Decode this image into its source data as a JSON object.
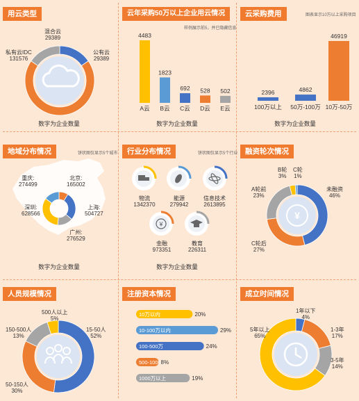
{
  "colors": {
    "blue": "#4472c4",
    "orange": "#ed7d31",
    "gray": "#a5a5a5",
    "yellow": "#ffc000",
    "lightblue": "#5b9bd5",
    "title_bg": "#f07a2d",
    "circle_bg": "#dbe4f3"
  },
  "caption": "数字为企业数量",
  "cloud_type": {
    "title": "用云类型",
    "chart_data": {
      "type": "pie",
      "slices": [
        {
          "name": "公有云",
          "value": 29389,
          "color": "#4472c4"
        },
        {
          "name": "私有云IDC",
          "value": 131576,
          "color": "#ed7d31"
        },
        {
          "name": "混合云",
          "value": 29389,
          "color": "#a5a5a5"
        }
      ]
    },
    "labels": [
      {
        "name": "公有云",
        "value": "29389"
      },
      {
        "name": "私有云IDC",
        "value": "131576"
      },
      {
        "name": "混合云",
        "value": "29389"
      }
    ],
    "icon": "cloud-icon"
  },
  "annual_cloud": {
    "title": "云年采购50万以上企业用云情况",
    "note": "样例展示前5，并已隐藏信息",
    "chart_data": {
      "type": "bar",
      "categories": [
        "A云",
        "B云",
        "C云",
        "D云",
        "E云"
      ],
      "values": [
        4483,
        1823,
        692,
        528,
        502
      ],
      "colors": [
        "#ffc000",
        "#5b9bd5",
        "#4472c4",
        "#ed7d31",
        "#a5a5a5"
      ]
    }
  },
  "cloud_cost": {
    "title": "云采购费用",
    "note": "图表显示10万以上采购项目",
    "chart_data": {
      "type": "bar",
      "categories": [
        "100万以上",
        "50万-100万",
        "10万-50万"
      ],
      "values": [
        2396,
        4862,
        46919
      ],
      "colors": [
        "#4472c4",
        "#4472c4",
        "#ed7d31"
      ]
    }
  },
  "region": {
    "title": "地域分布情况",
    "note": "饼状图仅显示5个城市",
    "chart_data": {
      "type": "pie",
      "slices": [
        {
          "name": "北京",
          "value": 165002,
          "color": "#ed7d31"
        },
        {
          "name": "上海",
          "value": 504727,
          "color": "#4472c4"
        },
        {
          "name": "广州",
          "value": 276529,
          "color": "#a5a5a5"
        },
        {
          "name": "深圳",
          "value": 628566,
          "color": "#ffc000"
        },
        {
          "name": "重庆",
          "value": 274499,
          "color": "#5b9bd5"
        }
      ]
    },
    "labels": [
      {
        "name": "重庆:",
        "value": "274499"
      },
      {
        "name": "北京:",
        "value": "165002"
      },
      {
        "name": "上海:",
        "value": "504727"
      },
      {
        "name": "深圳:",
        "value": "628566"
      },
      {
        "name": "广州:",
        "value": "276529"
      }
    ]
  },
  "industry": {
    "title": "行业分布情况",
    "note": "饼状图仅显示5个行业",
    "items": [
      {
        "name": "物流",
        "value": "1342370",
        "icon": "truck-icon"
      },
      {
        "name": "能源",
        "value": "279942",
        "icon": "leaf-icon"
      },
      {
        "name": "信息技术",
        "value": "2613895",
        "icon": "atom-icon"
      },
      {
        "name": "金融",
        "value": "973351",
        "icon": "yen-coin-icon"
      },
      {
        "name": "教育",
        "value": "226311",
        "icon": "graduation-cap-icon"
      }
    ],
    "chart_data": {
      "type": "table",
      "categories": [
        "物流",
        "能源",
        "信息技术",
        "金融",
        "教育"
      ],
      "values": [
        1342370,
        279942,
        2613895,
        973351,
        226311
      ]
    }
  },
  "funding": {
    "title": "融资轮次情况",
    "chart_data": {
      "type": "pie",
      "slices": [
        {
          "name": "未融资",
          "value": 46,
          "color": "#4472c4"
        },
        {
          "name": "C轮后",
          "value": 27,
          "color": "#ed7d31"
        },
        {
          "name": "A轮前",
          "value": 23,
          "color": "#a5a5a5"
        },
        {
          "name": "B轮",
          "value": 3,
          "color": "#ffc000"
        },
        {
          "name": "C轮",
          "value": 1,
          "color": "#5b9bd5"
        }
      ]
    },
    "labels": [
      {
        "name": "未融资",
        "value": "46%"
      },
      {
        "name": "C轮后",
        "value": "27%"
      },
      {
        "name": "A轮前",
        "value": "23%"
      },
      {
        "name": "B轮",
        "value": "3%"
      },
      {
        "name": "C轮",
        "value": "1%"
      }
    ]
  },
  "staff": {
    "title": "人员规模情况",
    "chart_data": {
      "type": "pie",
      "slices": [
        {
          "name": "15-50人",
          "value": 52,
          "color": "#4472c4"
        },
        {
          "name": "50-150人",
          "value": 30,
          "color": "#ed7d31"
        },
        {
          "name": "150-500人",
          "value": 13,
          "color": "#a5a5a5"
        },
        {
          "name": "500人以上",
          "value": 5,
          "color": "#ffc000"
        }
      ]
    },
    "labels": [
      {
        "name": "15-50人",
        "value": "52%"
      },
      {
        "name": "50-150人",
        "value": "30%"
      },
      {
        "name": "150-500人",
        "value": "13%"
      },
      {
        "name": "500人以上",
        "value": "5%"
      }
    ]
  },
  "capital": {
    "title": "注册资本情况",
    "chart_data": {
      "type": "bar",
      "categories": [
        "10万以内",
        "10-100万以内",
        "100-500万",
        "500-1000万",
        "1000万以上"
      ],
      "values": [
        20,
        29,
        24,
        8,
        19
      ],
      "unit": "%",
      "colors": [
        "#ffc000",
        "#5b9bd5",
        "#4472c4",
        "#ed7d31",
        "#a5a5a5"
      ]
    },
    "pct_labels": [
      "20%",
      "29%",
      "24%",
      "8%",
      "19%"
    ]
  },
  "founded": {
    "title": "成立时间情况",
    "chart_data": {
      "type": "pie",
      "slices": [
        {
          "name": "1年以下",
          "value": 4,
          "color": "#4472c4"
        },
        {
          "name": "1-3年",
          "value": 17,
          "color": "#ed7d31"
        },
        {
          "name": "3-5年",
          "value": 14,
          "color": "#a5a5a5"
        },
        {
          "name": "5年以上",
          "value": 65,
          "color": "#ffc000"
        }
      ]
    },
    "labels": [
      {
        "name": "1年以下",
        "value": "4%"
      },
      {
        "name": "1-3年",
        "value": "17%"
      },
      {
        "name": "3-5年",
        "value": "14%"
      },
      {
        "name": "5年以上",
        "value": "65%"
      }
    ]
  }
}
